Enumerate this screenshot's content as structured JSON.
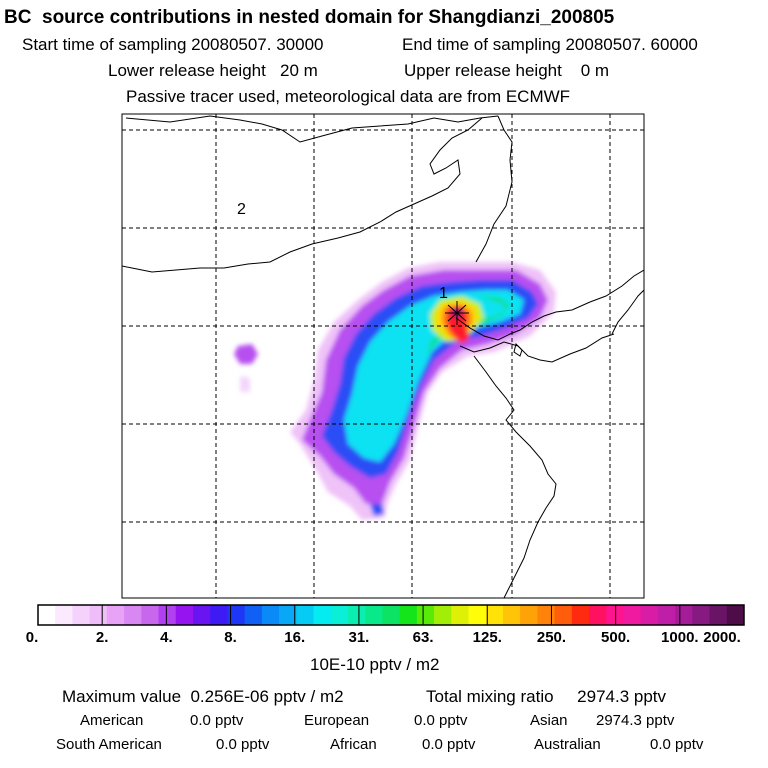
{
  "header": {
    "title": "BC  source contributions in nested domain for Shangdianzi_200805",
    "start_time": "Start time of sampling 20080507. 30000",
    "end_time": "End time of sampling 20080507. 60000",
    "lower_height": "Lower release height   20 m",
    "upper_height": "Upper release height    0 m",
    "tracer_note": "Passive tracer used, meteorological data are from ECMWF"
  },
  "map": {
    "labels": [
      "1",
      "2"
    ]
  },
  "colorbar": {
    "ticks": [
      "0.",
      "2.",
      "4.",
      "8.",
      "16.",
      "31.",
      "63.",
      "125.",
      "250.",
      "500.",
      "1000.",
      "2000."
    ],
    "units": "10E-10 pptv / m2",
    "colors": [
      "#ffffff",
      "#fbe9fd",
      "#f5d2fb",
      "#efbdf9",
      "#e8a3f6",
      "#d987f2",
      "#c866ee",
      "#b23ff0",
      "#9614f0",
      "#6a14f2",
      "#3e1af4",
      "#1e36f6",
      "#1060f6",
      "#0a8af6",
      "#08a8f6",
      "#06cbf4",
      "#04ecf2",
      "#0af0d8",
      "#0aeeaf",
      "#0ae98a",
      "#0ce364",
      "#14e41a",
      "#5aea08",
      "#a2ee06",
      "#ddf006",
      "#fffe08",
      "#ffe208",
      "#ffc408",
      "#ffa208",
      "#ff820a",
      "#ff5c0c",
      "#ff2a10",
      "#ff1060",
      "#ff1490",
      "#f01aa0",
      "#d81ca6",
      "#bf1ea8",
      "#a41c98",
      "#861a80",
      "#6a1466",
      "#4e0c48"
    ]
  },
  "summary": {
    "max_value": "Maximum value  0.256E-06 pptv / m2",
    "total_mixing": "Total mixing ratio     2974.3 pptv",
    "regions": [
      {
        "name": "American",
        "value": "0.0 pptv"
      },
      {
        "name": "European",
        "value": "0.0 pptv"
      },
      {
        "name": "Asian",
        "value": "2974.3 pptv"
      },
      {
        "name": "South American",
        "value": "0.0 pptv"
      },
      {
        "name": "African",
        "value": "0.0 pptv"
      },
      {
        "name": "Australian",
        "value": "0.0 pptv"
      }
    ]
  }
}
